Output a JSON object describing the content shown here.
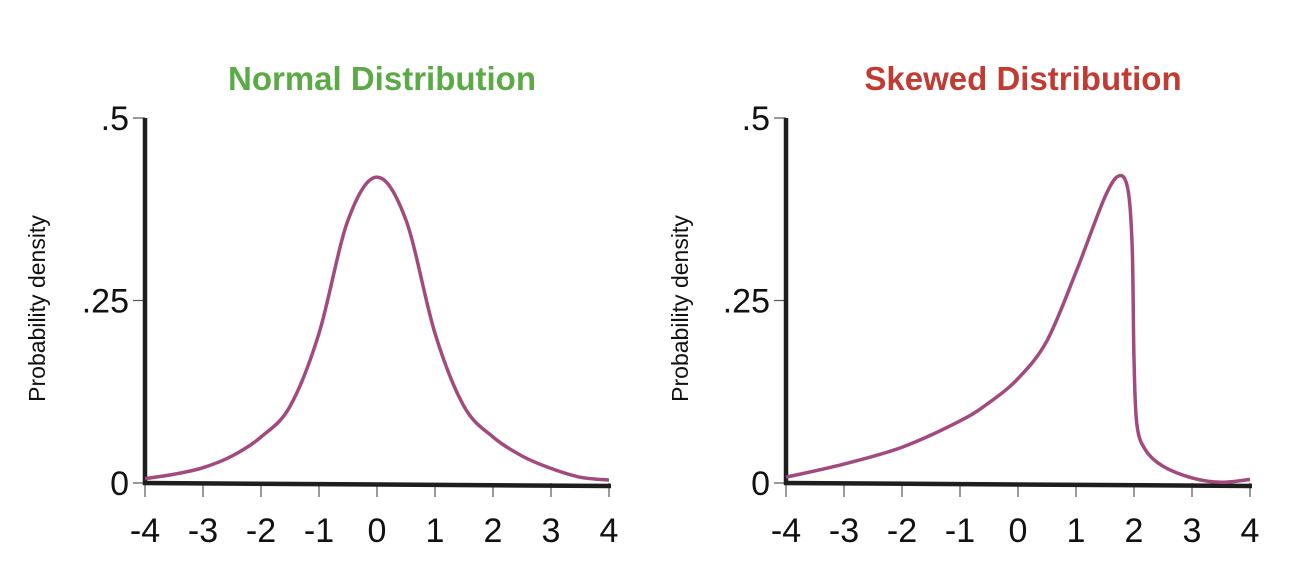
{
  "chart_data": [
    {
      "type": "line",
      "title": "Normal Distribution",
      "title_color": "#5aaa46",
      "ylabel": "Probability density",
      "xlabel": "",
      "xlim": [
        -4,
        4
      ],
      "ylim": [
        0,
        0.5
      ],
      "x_ticks": [
        "-4",
        "-3",
        "-2",
        "-1",
        "0",
        "1",
        "2",
        "3",
        "4"
      ],
      "y_ticks": [
        {
          "value": 0,
          "label": "0"
        },
        {
          "value": 0.25,
          "label": ".25"
        },
        {
          "value": 0.5,
          "label": ".5"
        }
      ],
      "line_color": "#a24a7e",
      "grid": false,
      "x": [
        -4,
        -3.5,
        -3,
        -2.5,
        -2,
        -1.5,
        -1,
        -0.5,
        0,
        0.5,
        1,
        1.5,
        2,
        2.5,
        3,
        3.5,
        4
      ],
      "y": [
        0.006,
        0.012,
        0.021,
        0.037,
        0.063,
        0.105,
        0.205,
        0.36,
        0.419,
        0.36,
        0.205,
        0.105,
        0.063,
        0.037,
        0.02,
        0.008,
        0.004
      ]
    },
    {
      "type": "line",
      "title": "Skewed Distribution",
      "title_color": "#c23b33",
      "ylabel": "Probability density",
      "xlabel": "",
      "xlim": [
        -4,
        4
      ],
      "ylim": [
        0,
        0.5
      ],
      "x_ticks": [
        "-4",
        "-3",
        "-2",
        "-1",
        "0",
        "1",
        "2",
        "3",
        "4"
      ],
      "y_ticks": [
        {
          "value": 0,
          "label": "0"
        },
        {
          "value": 0.25,
          "label": ".25"
        },
        {
          "value": 0.5,
          "label": ".5"
        }
      ],
      "line_color": "#a24a7e",
      "grid": false,
      "x": [
        -4,
        -3,
        -2,
        -1,
        -0.5,
        0,
        0.5,
        1,
        1.5,
        1.75,
        1.9,
        1.97,
        2.0,
        2.05,
        2.2,
        2.5,
        3,
        3.5,
        4
      ],
      "y": [
        0.008,
        0.026,
        0.049,
        0.085,
        0.11,
        0.143,
        0.195,
        0.289,
        0.392,
        0.421,
        0.4,
        0.32,
        0.17,
        0.08,
        0.045,
        0.023,
        0.007,
        0.001,
        0.005
      ]
    }
  ]
}
